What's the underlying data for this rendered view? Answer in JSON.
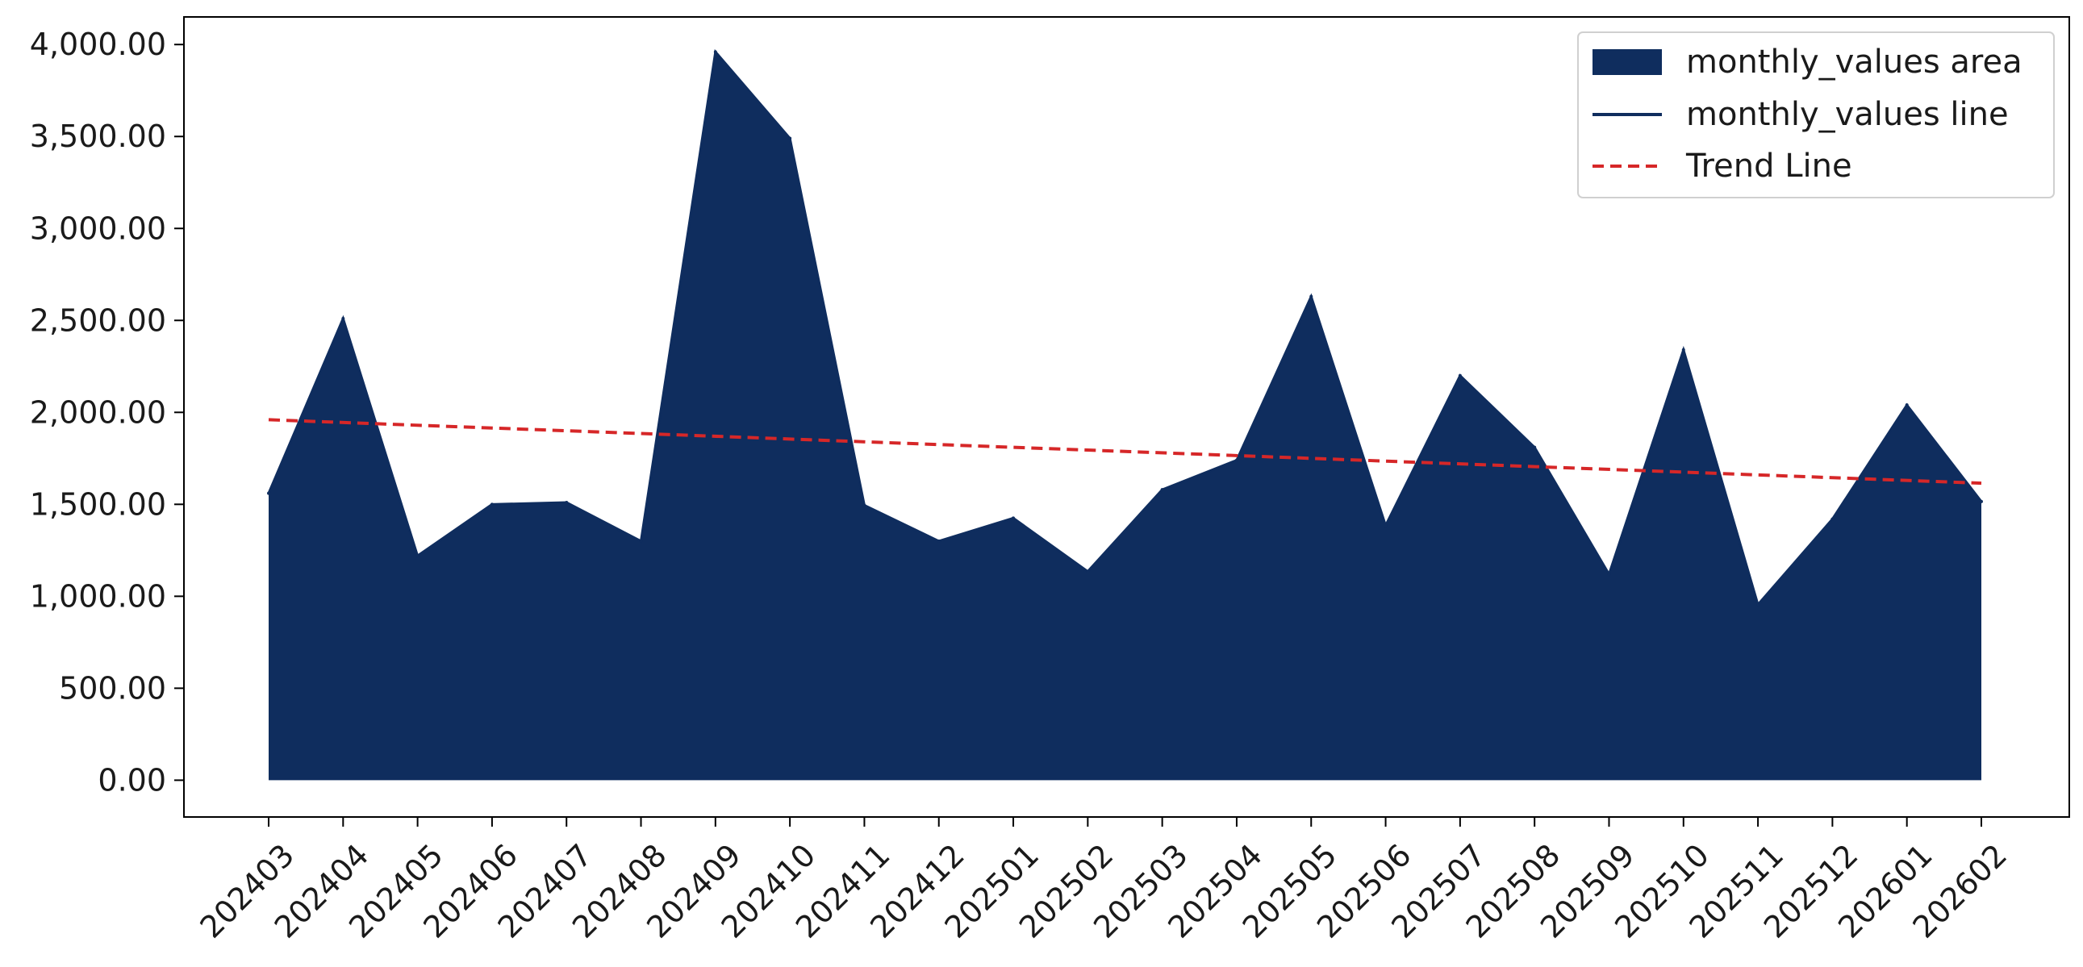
{
  "chart_data": {
    "type": "area",
    "title": "",
    "xlabel": "",
    "ylabel": "",
    "categories": [
      "202403",
      "202404",
      "202405",
      "202406",
      "202407",
      "202408",
      "202409",
      "202410",
      "202411",
      "202412",
      "202501",
      "202502",
      "202503",
      "202504",
      "202505",
      "202506",
      "202507",
      "202508",
      "202509",
      "202510",
      "202511",
      "202512",
      "202601",
      "202602"
    ],
    "series": [
      {
        "name": "monthly_values area",
        "values": [
          1560,
          2510,
          1220,
          1500,
          1510,
          1300,
          3960,
          3490,
          1495,
          1300,
          1425,
          1135,
          1580,
          1740,
          2630,
          1385,
          2200,
          1810,
          1120,
          2340,
          955,
          1420,
          2040,
          1515
        ]
      }
    ],
    "trend": {
      "name": "Trend Line",
      "start": 1960,
      "end": 1615
    },
    "legend": {
      "position": "top-right",
      "entries": [
        "monthly_values area",
        "monthly_values line",
        "Trend Line"
      ]
    },
    "ylim": [
      -200,
      4150
    ],
    "yticks": [
      0,
      500,
      1000,
      1500,
      2000,
      2500,
      3000,
      3500,
      4000
    ],
    "ytick_labels": [
      "0.00",
      "500.00",
      "1,000.00",
      "1,500.00",
      "2,000.00",
      "2,500.00",
      "3,000.00",
      "3,500.00",
      "4,000.00"
    ],
    "grid": false,
    "colors": {
      "area": "#0f2d5e",
      "line": "#0f2d5e",
      "trend": "#d62728"
    }
  }
}
